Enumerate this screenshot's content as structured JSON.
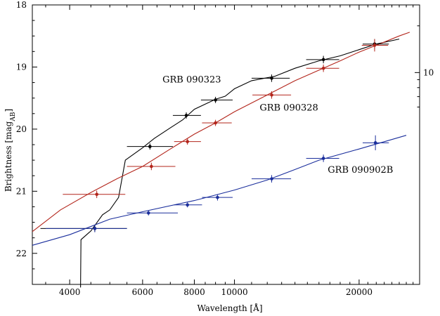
{
  "chart_data": {
    "type": "scatter",
    "xlabel": "Wavelength [Å]",
    "ylabel_main": "Brightness [mag",
    "ylabel_sub": "AB",
    "ylabel_close": "]",
    "x_scale": "log",
    "xlim": [
      3250,
      28000
    ],
    "ylim": [
      22.5,
      18.0
    ],
    "y2_scale": "log",
    "y2_ticks": [
      10,
      100
    ],
    "y2_label_text": "",
    "x_ticks": [
      4000,
      6000,
      8000,
      10000,
      20000
    ],
    "x_tick_labels": [
      "4000",
      "6000",
      "8000",
      "10000",
      "20000"
    ],
    "y_ticks": [
      18,
      19,
      20,
      21,
      22
    ],
    "y_tick_labels": [
      "18",
      "19",
      "20",
      "21",
      "22"
    ],
    "series": [
      {
        "name": "GRB 090323",
        "color": "#000000",
        "points": [
          {
            "x": 4600,
            "y": 21.6,
            "xerr": [
              3400,
              5500
            ],
            "yerr": 0.05
          },
          {
            "x": 6250,
            "y": 20.28,
            "xerr": [
              5500,
              7100
            ],
            "yerr": 0.05
          },
          {
            "x": 7650,
            "y": 19.78,
            "xerr": [
              7100,
              8300
            ],
            "yerr": 0.05
          },
          {
            "x": 9000,
            "y": 19.53,
            "xerr": [
              8300,
              9900
            ],
            "yerr": 0.05
          },
          {
            "x": 12300,
            "y": 19.18,
            "xerr": [
              11000,
              13600
            ],
            "yerr": 0.06
          },
          {
            "x": 16400,
            "y": 18.88,
            "xerr": [
              14900,
              17900
            ],
            "yerr": 0.06
          },
          {
            "x": 21800,
            "y": 18.63,
            "xerr": [
              20400,
              23600
            ],
            "yerr": 0.08
          }
        ],
        "model": [
          [
            4250,
            22.55
          ],
          [
            4260,
            21.78
          ],
          [
            4500,
            21.64
          ],
          [
            4800,
            21.38
          ],
          [
            5000,
            21.3
          ],
          [
            5250,
            21.1
          ],
          [
            5450,
            20.5
          ],
          [
            6000,
            20.3
          ],
          [
            6400,
            20.15
          ],
          [
            7000,
            19.98
          ],
          [
            7500,
            19.85
          ],
          [
            8000,
            19.68
          ],
          [
            9000,
            19.52
          ],
          [
            9500,
            19.47
          ],
          [
            10000,
            19.35
          ],
          [
            11000,
            19.22
          ],
          [
            12500,
            19.15
          ],
          [
            14000,
            19.02
          ],
          [
            16000,
            18.9
          ],
          [
            18000,
            18.82
          ],
          [
            20000,
            18.72
          ],
          [
            22000,
            18.63
          ],
          [
            25000,
            18.55
          ]
        ]
      },
      {
        "name": "GRB 090328",
        "color": "#b3251b",
        "points": [
          {
            "x": 4650,
            "y": 21.05,
            "xerr": [
              3850,
              5450
            ],
            "yerr": 0.06
          },
          {
            "x": 6300,
            "y": 20.6,
            "xerr": [
              5500,
              7200
            ],
            "yerr": 0.06
          },
          {
            "x": 7700,
            "y": 20.2,
            "xerr": [
              7150,
              8300
            ],
            "yerr": 0.05
          },
          {
            "x": 9000,
            "y": 19.9,
            "xerr": [
              8350,
              9850
            ],
            "yerr": 0.05
          },
          {
            "x": 12300,
            "y": 19.45,
            "xerr": [
              11050,
              13700
            ],
            "yerr": 0.06
          },
          {
            "x": 16400,
            "y": 19.02,
            "xerr": [
              14900,
              17900
            ],
            "yerr": 0.06
          },
          {
            "x": 21800,
            "y": 18.65,
            "xerr": [
              20300,
              23500
            ],
            "yerr": 0.1
          }
        ],
        "model": [
          [
            3250,
            21.65
          ],
          [
            3800,
            21.3
          ],
          [
            4500,
            21.02
          ],
          [
            5200,
            20.8
          ],
          [
            6000,
            20.6
          ],
          [
            7000,
            20.32
          ],
          [
            8000,
            20.08
          ],
          [
            9000,
            19.9
          ],
          [
            10000,
            19.72
          ],
          [
            12000,
            19.45
          ],
          [
            14000,
            19.22
          ],
          [
            16000,
            19.05
          ],
          [
            18000,
            18.9
          ],
          [
            20000,
            18.76
          ],
          [
            22000,
            18.65
          ],
          [
            25000,
            18.5
          ],
          [
            26500,
            18.44
          ]
        ]
      },
      {
        "name": "GRB 090902B",
        "color": "#1a2e9c",
        "points": [
          {
            "x": 4600,
            "y": 21.6,
            "xerr": [
              3500,
              5500
            ],
            "yerr": 0.06
          },
          {
            "x": 6200,
            "y": 21.35,
            "xerr": [
              5500,
              7300
            ],
            "yerr": 0.04
          },
          {
            "x": 7700,
            "y": 21.22,
            "xerr": [
              7150,
              8350
            ],
            "yerr": 0.04
          },
          {
            "x": 9100,
            "y": 21.1,
            "xerr": [
              8350,
              9900
            ],
            "yerr": 0.05
          },
          {
            "x": 12300,
            "y": 20.8,
            "xerr": [
              11000,
              13700
            ],
            "yerr": 0.06
          },
          {
            "x": 16400,
            "y": 20.47,
            "xerr": [
              14900,
              17900
            ],
            "yerr": 0.06
          },
          {
            "x": 21900,
            "y": 20.22,
            "xerr": [
              20400,
              23600
            ],
            "yerr": 0.12
          }
        ],
        "model": [
          [
            3250,
            21.87
          ],
          [
            4000,
            21.7
          ],
          [
            5000,
            21.45
          ],
          [
            6000,
            21.33
          ],
          [
            8000,
            21.15
          ],
          [
            10000,
            20.98
          ],
          [
            12000,
            20.82
          ],
          [
            14000,
            20.65
          ],
          [
            16000,
            20.5
          ],
          [
            20000,
            20.32
          ],
          [
            26000,
            20.1
          ]
        ]
      }
    ]
  }
}
